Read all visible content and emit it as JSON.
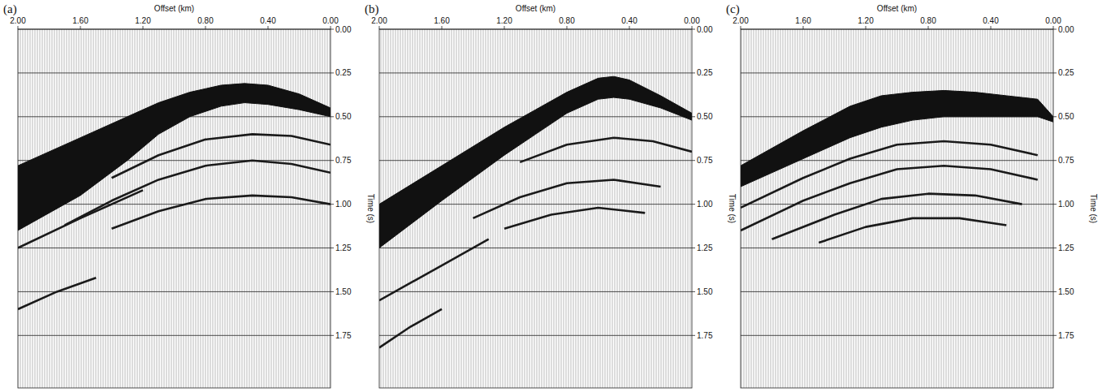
{
  "chart_data": [
    {
      "type": "line",
      "panel": "(a)",
      "x_label": "Offset (km)",
      "y_label": "Time (s)",
      "grid": true,
      "xlim": [
        2.0,
        0.0
      ],
      "ylim": [
        0,
        2.05
      ],
      "xticks": [
        {
          "value": 2.0,
          "label": "2.00"
        },
        {
          "value": 1.6,
          "label": "1.60"
        },
        {
          "value": 1.2,
          "label": "1.20"
        },
        {
          "value": 0.8,
          "label": "0.80"
        },
        {
          "value": 0.4,
          "label": "0.40"
        },
        {
          "value": 0.0,
          "label": "0.00"
        }
      ],
      "yticks": [
        {
          "value": 0,
          "label": "0.00"
        },
        {
          "value": 0.25,
          "label": "0.25"
        },
        {
          "value": 0.5,
          "label": "0.50"
        },
        {
          "value": 0.75,
          "label": "0.75"
        },
        {
          "value": 1.0,
          "label": "1.00"
        },
        {
          "value": 1.25,
          "label": "1.25"
        },
        {
          "value": 1.5,
          "label": "1.50"
        },
        {
          "value": 1.75,
          "label": "1.75"
        }
      ],
      "series": [
        {
          "type": "band",
          "x": [
            0,
            0.2,
            0.4,
            0.55,
            0.7,
            0.9,
            1.1,
            1.3,
            1.6,
            2.0
          ],
          "values": [
            0.45,
            0.37,
            0.32,
            0.31,
            0.32,
            0.36,
            0.42,
            0.5,
            0.62,
            0.78
          ],
          "base": [
            0.5,
            0.46,
            0.43,
            0.42,
            0.44,
            0.5,
            0.6,
            0.75,
            0.95,
            1.15
          ]
        },
        {
          "type": "line",
          "x": [
            0,
            0.25,
            0.5,
            0.8,
            1.1,
            1.4
          ],
          "values": [
            0.66,
            0.61,
            0.6,
            0.63,
            0.72,
            0.85
          ]
        },
        {
          "type": "line",
          "x": [
            0,
            0.25,
            0.5,
            0.8,
            1.1,
            1.4,
            1.7
          ],
          "values": [
            0.82,
            0.77,
            0.75,
            0.78,
            0.86,
            0.98,
            1.12
          ]
        },
        {
          "type": "line",
          "x": [
            0,
            0.25,
            0.5,
            0.8,
            1.1,
            1.4
          ],
          "values": [
            1.0,
            0.96,
            0.95,
            0.97,
            1.04,
            1.14
          ]
        },
        {
          "type": "line",
          "x": [
            1.2,
            1.6,
            2.0
          ],
          "values": [
            0.92,
            1.08,
            1.25
          ]
        },
        {
          "type": "line",
          "x": [
            1.5,
            1.75,
            2.0
          ],
          "values": [
            1.42,
            1.5,
            1.6
          ]
        }
      ]
    },
    {
      "type": "line",
      "panel": "(b)",
      "x_label": "Offset (km)",
      "y_label": "Time (s)",
      "grid": true,
      "xlim": [
        2.0,
        0.0
      ],
      "ylim": [
        0,
        2.05
      ],
      "xticks": [
        {
          "value": 2.0,
          "label": "2.00"
        },
        {
          "value": 1.6,
          "label": "1.60"
        },
        {
          "value": 1.2,
          "label": "1.20"
        },
        {
          "value": 0.8,
          "label": "0.80"
        },
        {
          "value": 0.4,
          "label": "0.40"
        },
        {
          "value": 0.0,
          "label": "0.00"
        }
      ],
      "yticks": [
        {
          "value": 0,
          "label": "0.00"
        },
        {
          "value": 0.25,
          "label": "0.25"
        },
        {
          "value": 0.5,
          "label": "0.50"
        },
        {
          "value": 0.75,
          "label": "0.75"
        },
        {
          "value": 1.0,
          "label": "1.00"
        },
        {
          "value": 1.25,
          "label": "1.25"
        },
        {
          "value": 1.5,
          "label": "1.50"
        },
        {
          "value": 1.75,
          "label": "1.75"
        }
      ],
      "series": [
        {
          "type": "band",
          "x": [
            0,
            0.2,
            0.4,
            0.5,
            0.6,
            0.8,
            1.0,
            1.2,
            1.6,
            2.0
          ],
          "values": [
            0.48,
            0.38,
            0.29,
            0.27,
            0.28,
            0.36,
            0.46,
            0.56,
            0.78,
            1.0
          ],
          "base": [
            0.52,
            0.45,
            0.4,
            0.39,
            0.4,
            0.48,
            0.6,
            0.72,
            0.98,
            1.25
          ]
        },
        {
          "type": "line",
          "x": [
            0,
            0.25,
            0.5,
            0.8,
            1.1
          ],
          "values": [
            0.7,
            0.64,
            0.62,
            0.66,
            0.76
          ]
        },
        {
          "type": "line",
          "x": [
            0.2,
            0.5,
            0.8,
            1.1,
            1.4
          ],
          "values": [
            0.9,
            0.86,
            0.88,
            0.96,
            1.08
          ]
        },
        {
          "type": "line",
          "x": [
            0.3,
            0.6,
            0.9,
            1.2
          ],
          "values": [
            1.05,
            1.02,
            1.06,
            1.14
          ]
        },
        {
          "type": "line",
          "x": [
            1.3,
            1.6,
            2.0
          ],
          "values": [
            1.2,
            1.35,
            1.55
          ]
        },
        {
          "type": "line",
          "x": [
            1.6,
            1.8,
            2.0
          ],
          "values": [
            1.6,
            1.7,
            1.82
          ]
        }
      ]
    },
    {
      "type": "line",
      "panel": "(c)",
      "x_label": "Offset (km)",
      "y_label": "Time (s)",
      "grid": true,
      "xlim": [
        2.0,
        0.0
      ],
      "ylim": [
        0,
        2.05
      ],
      "xticks": [
        {
          "value": 2.0,
          "label": "2.00"
        },
        {
          "value": 1.6,
          "label": "1.60"
        },
        {
          "value": 1.2,
          "label": "1.20"
        },
        {
          "value": 0.8,
          "label": "0.80"
        },
        {
          "value": 0.4,
          "label": "0.40"
        },
        {
          "value": 0.0,
          "label": "0.00"
        }
      ],
      "yticks": [
        {
          "value": 0,
          "label": "0.00"
        },
        {
          "value": 0.25,
          "label": "0.25"
        },
        {
          "value": 0.5,
          "label": "0.50"
        },
        {
          "value": 0.75,
          "label": "0.75"
        },
        {
          "value": 1.0,
          "label": "1.00"
        },
        {
          "value": 1.25,
          "label": "1.25"
        },
        {
          "value": 1.5,
          "label": "1.50"
        },
        {
          "value": 1.75,
          "label": "1.75"
        }
      ],
      "series": [
        {
          "type": "band",
          "x": [
            0,
            0.1,
            0.3,
            0.5,
            0.7,
            0.9,
            1.1,
            1.3,
            1.6,
            2.0
          ],
          "values": [
            0.5,
            0.4,
            0.38,
            0.36,
            0.35,
            0.36,
            0.38,
            0.44,
            0.58,
            0.78
          ],
          "base": [
            0.53,
            0.5,
            0.5,
            0.5,
            0.5,
            0.52,
            0.56,
            0.62,
            0.74,
            0.9
          ]
        },
        {
          "type": "line",
          "x": [
            0.1,
            0.4,
            0.7,
            1.0,
            1.3,
            1.6,
            2.0
          ],
          "values": [
            0.72,
            0.66,
            0.64,
            0.66,
            0.74,
            0.85,
            1.02
          ]
        },
        {
          "type": "line",
          "x": [
            0.1,
            0.4,
            0.7,
            1.0,
            1.3,
            1.6,
            2.0
          ],
          "values": [
            0.86,
            0.8,
            0.78,
            0.8,
            0.88,
            0.98,
            1.15
          ]
        },
        {
          "type": "line",
          "x": [
            0.2,
            0.5,
            0.8,
            1.1,
            1.4,
            1.8
          ],
          "values": [
            1.0,
            0.95,
            0.94,
            0.97,
            1.06,
            1.2
          ]
        },
        {
          "type": "line",
          "x": [
            0.3,
            0.6,
            0.9,
            1.2,
            1.5
          ],
          "values": [
            1.12,
            1.08,
            1.08,
            1.13,
            1.22
          ]
        }
      ]
    }
  ]
}
